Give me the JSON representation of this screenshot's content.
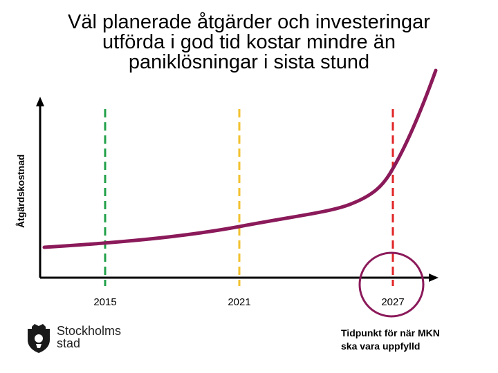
{
  "chart_data": {
    "type": "line",
    "title_lines": [
      "Väl planerade åtgärder och investeringar",
      "utförda i god tid kostar mindre än",
      "paniklösningar i sista stund"
    ],
    "ylabel": "Åtgärdskostnad",
    "xlabel": "",
    "x_ticks": [
      "2015",
      "2021",
      "2027"
    ],
    "markers": [
      {
        "label": "2015",
        "color": "#21a049"
      },
      {
        "label": "2021",
        "color": "#f2c12e"
      },
      {
        "label": "2027",
        "color": "#e02424"
      }
    ],
    "line_color": "#8b1a5a",
    "circle_color": "#8b1a5a",
    "grid": false,
    "legend": "none"
  },
  "note": {
    "line1": "Tidpunkt för när MKN",
    "line2": "ska vara uppfylld"
  },
  "logo": {
    "line1": "Stockholms",
    "line2": "stad",
    "icon": "stockholm-crest-icon"
  }
}
